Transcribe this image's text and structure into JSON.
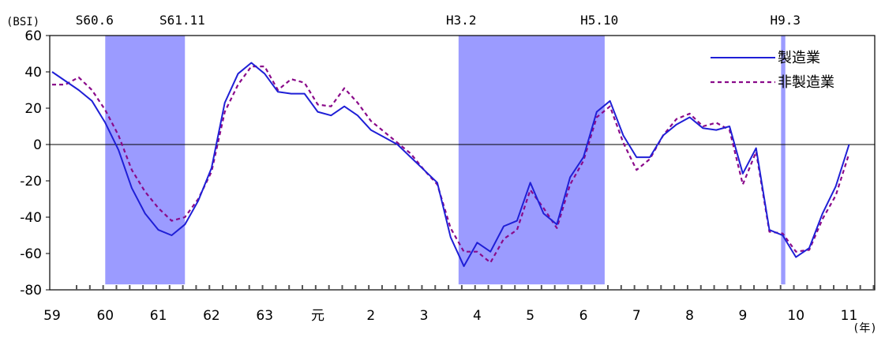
{
  "chart_data": {
    "type": "line",
    "title": "",
    "ylabel": "(BSI)",
    "xlabel": "(年)",
    "ylim": [
      -80,
      60
    ],
    "yticks": [
      60,
      40,
      20,
      0,
      -20,
      -40,
      -60,
      -80
    ],
    "xticks": [
      "59",
      "60",
      "61",
      "62",
      "63",
      "元",
      "2",
      "3",
      "4",
      "5",
      "6",
      "7",
      "8",
      "9",
      "10",
      "11"
    ],
    "x_start": "59",
    "x_end": "11",
    "points_per_year": 4,
    "shaded_periods": [
      {
        "from": 60.0,
        "to": 61.5
      },
      {
        "from": 2.65,
        "to": 5.4
      },
      {
        "from": 8.72,
        "to": 8.8
      }
    ],
    "period_labels": [
      {
        "text": "S60.6",
        "at": 59.8
      },
      {
        "text": "S61.11",
        "at": 61.45
      },
      {
        "text": "H3.2",
        "at": 2.7
      },
      {
        "text": "H5.10",
        "at": 5.3
      },
      {
        "text": "H9.3",
        "at": 8.8
      }
    ],
    "legend_position": "top-right",
    "grid": false,
    "series": [
      {
        "name": "製造業",
        "color": "#1f1fd6",
        "style": "solid",
        "values": [
          40,
          35,
          30,
          24,
          12,
          -3,
          -24,
          -38,
          -47,
          -50,
          -44,
          -31,
          -13,
          23,
          39,
          45,
          39,
          29,
          28,
          28,
          18,
          16,
          21,
          16,
          8,
          4,
          0,
          -7,
          -14,
          -21,
          -51,
          -67,
          -54,
          -59,
          -45,
          -42,
          -21,
          -38,
          -44,
          -18,
          -7,
          18,
          24,
          5,
          -7,
          -7,
          5,
          11,
          15,
          9,
          8,
          10,
          -16,
          -2,
          -47,
          -50,
          -62,
          -57,
          -38,
          -23,
          0
        ]
      },
      {
        "name": "非製造業",
        "color": "#8a0a8a",
        "style": "dashed",
        "values": [
          33,
          33,
          37,
          30,
          19,
          5,
          -14,
          -26,
          -35,
          -42,
          -40,
          -30,
          -15,
          18,
          33,
          43,
          43,
          30,
          36,
          34,
          22,
          21,
          31,
          23,
          13,
          7,
          1,
          -5,
          -14,
          -22,
          -46,
          -59,
          -59,
          -65,
          -52,
          -47,
          -25,
          -35,
          -46,
          -22,
          -9,
          15,
          21,
          1,
          -14,
          -8,
          5,
          14,
          17,
          10,
          12,
          8,
          -22,
          -4,
          -48,
          -49,
          -59,
          -58,
          -41,
          -28,
          -5
        ]
      }
    ]
  }
}
